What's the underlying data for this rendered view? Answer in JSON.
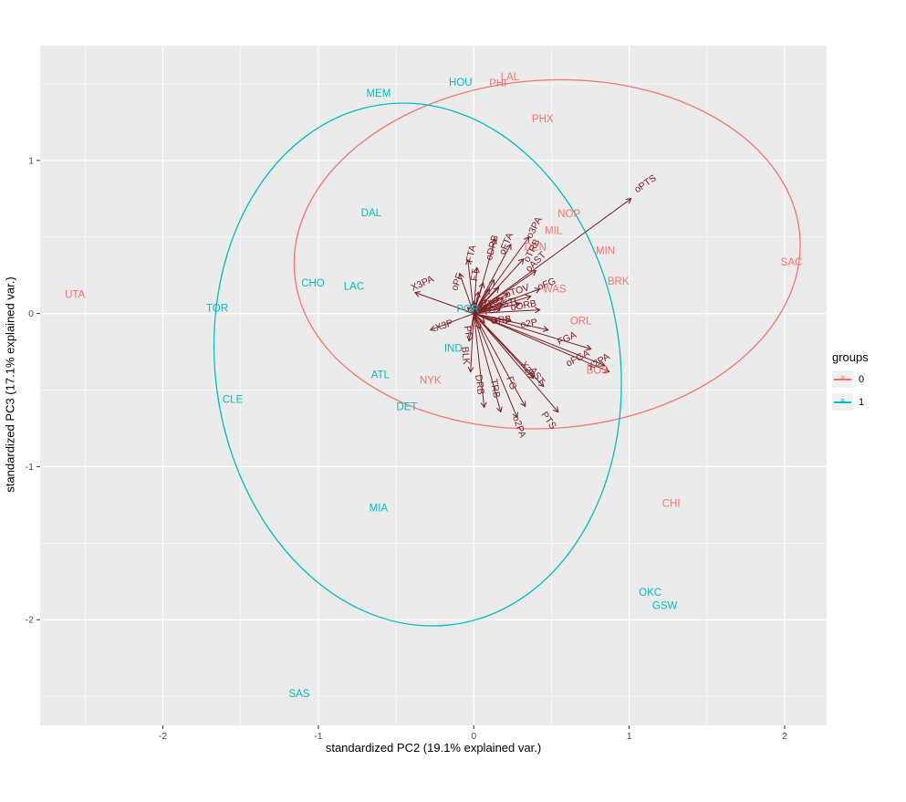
{
  "figure": {
    "background": "#FFFFFF",
    "panel_bg": "#EBEBEB",
    "grid_color": "#FFFFFF",
    "axis_text_color": "#4D4D4D",
    "tick_color": "#333333"
  },
  "legend": {
    "title": "groups",
    "entries": [
      {
        "label": "0",
        "key_letter": "a",
        "color": "#F8766D"
      },
      {
        "label": "1",
        "key_letter": "a",
        "color": "#00BFC4"
      }
    ]
  },
  "chart_data": {
    "type": "scatter",
    "xlabel": "standardized PC2 (19.1% explained var.)",
    "ylabel": "standardized PC3 (17.1% explained var.)",
    "xlim": [
      -2.79,
      2.27
    ],
    "ylim": [
      -2.69,
      1.75
    ],
    "x_ticks": [
      -2,
      -1,
      0,
      1,
      2
    ],
    "y_ticks": [
      -2,
      -1,
      0,
      1
    ],
    "grid": true,
    "legend_position": "right",
    "groups": [
      {
        "name": "0",
        "color": "#F8766D"
      },
      {
        "name": "1",
        "color": "#00BFC4"
      }
    ],
    "points": [
      {
        "label": "UTA",
        "group": 0,
        "x": -2.566,
        "y": 0.119
      },
      {
        "label": "PHI",
        "group": 0,
        "x": 0.155,
        "y": 1.5
      },
      {
        "label": "LAL",
        "group": 0,
        "x": 0.232,
        "y": 1.542
      },
      {
        "label": "PHX",
        "group": 0,
        "x": 0.443,
        "y": 1.268
      },
      {
        "label": "DEN",
        "group": 0,
        "x": 0.396,
        "y": 0.429
      },
      {
        "label": "NOP",
        "group": 0,
        "x": 0.613,
        "y": 0.649
      },
      {
        "label": "MIL",
        "group": 0,
        "x": 0.513,
        "y": 0.536
      },
      {
        "label": "MIN",
        "group": 0,
        "x": 0.847,
        "y": 0.405
      },
      {
        "label": "BRK",
        "group": 0,
        "x": 0.93,
        "y": 0.208
      },
      {
        "label": "WAS",
        "group": 0,
        "x": 0.519,
        "y": 0.155
      },
      {
        "label": "ORL",
        "group": 0,
        "x": 0.689,
        "y": -0.054
      },
      {
        "label": "BOS",
        "group": 0,
        "x": 0.795,
        "y": -0.375
      },
      {
        "label": "SAC",
        "group": 0,
        "x": 2.044,
        "y": 0.333
      },
      {
        "label": "CHI",
        "group": 0,
        "x": 1.27,
        "y": -1.244
      },
      {
        "label": "NYK",
        "group": 0,
        "x": -0.279,
        "y": -0.44
      },
      {
        "label": "MEM",
        "group": 1,
        "x": -0.613,
        "y": 1.435
      },
      {
        "label": "HOU",
        "group": 1,
        "x": -0.085,
        "y": 1.506
      },
      {
        "label": "DAL",
        "group": 1,
        "x": -0.66,
        "y": 0.655
      },
      {
        "label": "CHO",
        "group": 1,
        "x": -1.035,
        "y": 0.196
      },
      {
        "label": "LAC",
        "group": 1,
        "x": -0.771,
        "y": 0.173
      },
      {
        "label": "TOR",
        "group": 1,
        "x": -1.651,
        "y": 0.03
      },
      {
        "label": "CLE",
        "group": 1,
        "x": -1.551,
        "y": -0.565
      },
      {
        "label": "ATL",
        "group": 1,
        "x": -0.601,
        "y": -0.405
      },
      {
        "label": "DET",
        "group": 1,
        "x": -0.431,
        "y": -0.613
      },
      {
        "label": "MIA",
        "group": 1,
        "x": -0.613,
        "y": -1.274
      },
      {
        "label": "SAS",
        "group": 1,
        "x": -1.123,
        "y": -2.488
      },
      {
        "label": "OKC",
        "group": 1,
        "x": 1.135,
        "y": -1.827
      },
      {
        "label": "GSW",
        "group": 1,
        "x": 1.229,
        "y": -1.911
      },
      {
        "label": "IND",
        "group": 1,
        "x": -0.132,
        "y": -0.232
      },
      {
        "label": "POR",
        "group": 1,
        "x": -0.038,
        "y": 0.024
      }
    ],
    "loadings_color": "#7D2125",
    "loadings": [
      {
        "label": "oPTS",
        "x": 1.012,
        "y": 0.75,
        "lx": 1.105,
        "ly": 0.845,
        "rot": -35
      },
      {
        "label": "o3PA",
        "x": 0.355,
        "y": 0.5,
        "lx": 0.39,
        "ly": 0.56,
        "rot": -62
      },
      {
        "label": "oTRB",
        "x": 0.32,
        "y": 0.357,
        "lx": 0.375,
        "ly": 0.41,
        "rot": -62
      },
      {
        "label": "oAST",
        "x": 0.4,
        "y": 0.28,
        "lx": 0.4,
        "ly": 0.335,
        "rot": -45
      },
      {
        "label": "oFG",
        "x": 0.425,
        "y": 0.161,
        "lx": 0.47,
        "ly": 0.19,
        "rot": -22
      },
      {
        "label": "oFTA",
        "x": 0.238,
        "y": 0.452,
        "lx": 0.21,
        "ly": 0.455,
        "rot": -68
      },
      {
        "label": "oDRB",
        "x": 0.138,
        "y": 0.488,
        "lx": 0.12,
        "ly": 0.43,
        "rot": -75
      },
      {
        "label": "FTA",
        "x": -0.038,
        "y": 0.351,
        "lx": -0.015,
        "ly": 0.39,
        "rot": -78
      },
      {
        "label": "oPF",
        "x": -0.091,
        "y": 0.262,
        "lx": -0.105,
        "ly": 0.205,
        "rot": -70
      },
      {
        "label": "X3PA",
        "x": -0.378,
        "y": 0.137,
        "lx": -0.33,
        "ly": 0.195,
        "rot": -25
      },
      {
        "label": "X3P",
        "x": -0.279,
        "y": -0.107,
        "lx": -0.19,
        "ly": -0.08,
        "rot": -18
      },
      {
        "label": "oTOV",
        "x": 0.367,
        "y": 0.113,
        "lx": 0.28,
        "ly": 0.145,
        "rot": -18
      },
      {
        "label": "oSTL",
        "x": 0.296,
        "y": 0.065,
        "lx": 0.222,
        "ly": 0.068,
        "rot": -12
      },
      {
        "label": "oORB",
        "x": 0.425,
        "y": 0.024,
        "lx": 0.32,
        "ly": 0.05,
        "rot": -10
      },
      {
        "label": "ORB",
        "x": 0.238,
        "y": -0.048,
        "lx": 0.175,
        "ly": -0.045,
        "rot": -6
      },
      {
        "label": "o2P",
        "x": 0.478,
        "y": -0.107,
        "lx": 0.355,
        "ly": -0.068,
        "rot": -10
      },
      {
        "label": "FGA",
        "x": 0.754,
        "y": -0.232,
        "lx": 0.6,
        "ly": -0.165,
        "rot": -25
      },
      {
        "label": "oFGA",
        "x": 0.842,
        "y": -0.339,
        "lx": 0.67,
        "ly": -0.295,
        "rot": -28
      },
      {
        "label": "X2PA",
        "x": 0.871,
        "y": -0.381,
        "lx": 0.805,
        "ly": -0.318,
        "rot": -32
      },
      {
        "label": "X2P",
        "x": 0.384,
        "y": -0.423,
        "lx": 0.345,
        "ly": -0.37,
        "rot": 55
      },
      {
        "label": "AST",
        "x": 0.449,
        "y": -0.476,
        "lx": 0.405,
        "ly": -0.408,
        "rot": 55
      },
      {
        "label": "FG",
        "x": 0.331,
        "y": -0.607,
        "lx": 0.24,
        "ly": -0.455,
        "rot": 70
      },
      {
        "label": "TRB",
        "x": 0.173,
        "y": -0.643,
        "lx": 0.135,
        "ly": -0.49,
        "rot": 80
      },
      {
        "label": "DRB",
        "x": 0.067,
        "y": -0.613,
        "lx": 0.035,
        "ly": -0.465,
        "rot": 83
      },
      {
        "label": "BLK",
        "x": -0.021,
        "y": -0.381,
        "lx": -0.055,
        "ly": -0.275,
        "rot": 85
      },
      {
        "label": "o2PA",
        "x": 0.279,
        "y": -0.679,
        "lx": 0.29,
        "ly": -0.74,
        "rot": 70
      },
      {
        "label": "PTS",
        "x": 0.543,
        "y": -0.643,
        "lx": 0.48,
        "ly": -0.7,
        "rot": 55
      },
      {
        "label": "FT",
        "x": 0.02,
        "y": 0.3,
        "lx": 0.01,
        "ly": 0.25,
        "rot": -80
      },
      {
        "label": "STL",
        "x": 0.16,
        "y": 0.1,
        "lx": 0.1,
        "ly": 0.06,
        "rot": -20
      },
      {
        "label": "TOV",
        "x": 0.19,
        "y": 0.06,
        "lx": 0.12,
        "ly": 0.02,
        "rot": -15
      },
      {
        "label": "PF",
        "x": -0.03,
        "y": -0.18,
        "lx": -0.04,
        "ly": -0.12,
        "rot": 80
      }
    ],
    "extra_arrows": [
      {
        "x": 0.06,
        "y": 0.2
      },
      {
        "x": 0.1,
        "y": 0.16
      },
      {
        "x": 0.13,
        "y": 0.22
      },
      {
        "x": 0.03,
        "y": 0.14
      },
      {
        "x": 0.16,
        "y": 0.17
      },
      {
        "x": 0.08,
        "y": 0.09
      },
      {
        "x": 0.19,
        "y": 0.1
      },
      {
        "x": 0.12,
        "y": 0.05
      },
      {
        "x": 0.15,
        "y": -0.05
      },
      {
        "x": 0.04,
        "y": -0.1
      },
      {
        "x": 0.0,
        "y": 0.08
      },
      {
        "x": 0.07,
        "y": -0.06
      },
      {
        "x": 0.22,
        "y": 0.13
      },
      {
        "x": 0.17,
        "y": 0.03
      },
      {
        "x": 0.05,
        "y": 0.05
      },
      {
        "x": -0.04,
        "y": 0.04
      }
    ],
    "ellipses": [
      {
        "group": 0,
        "cx": 0.472,
        "cy": 0.387,
        "rx": 1.63,
        "ry": 1.137,
        "angle": -4
      },
      {
        "group": 1,
        "cx": -0.361,
        "cy": -0.333,
        "rx": 1.302,
        "ry": 1.714,
        "angle": -8
      }
    ]
  }
}
